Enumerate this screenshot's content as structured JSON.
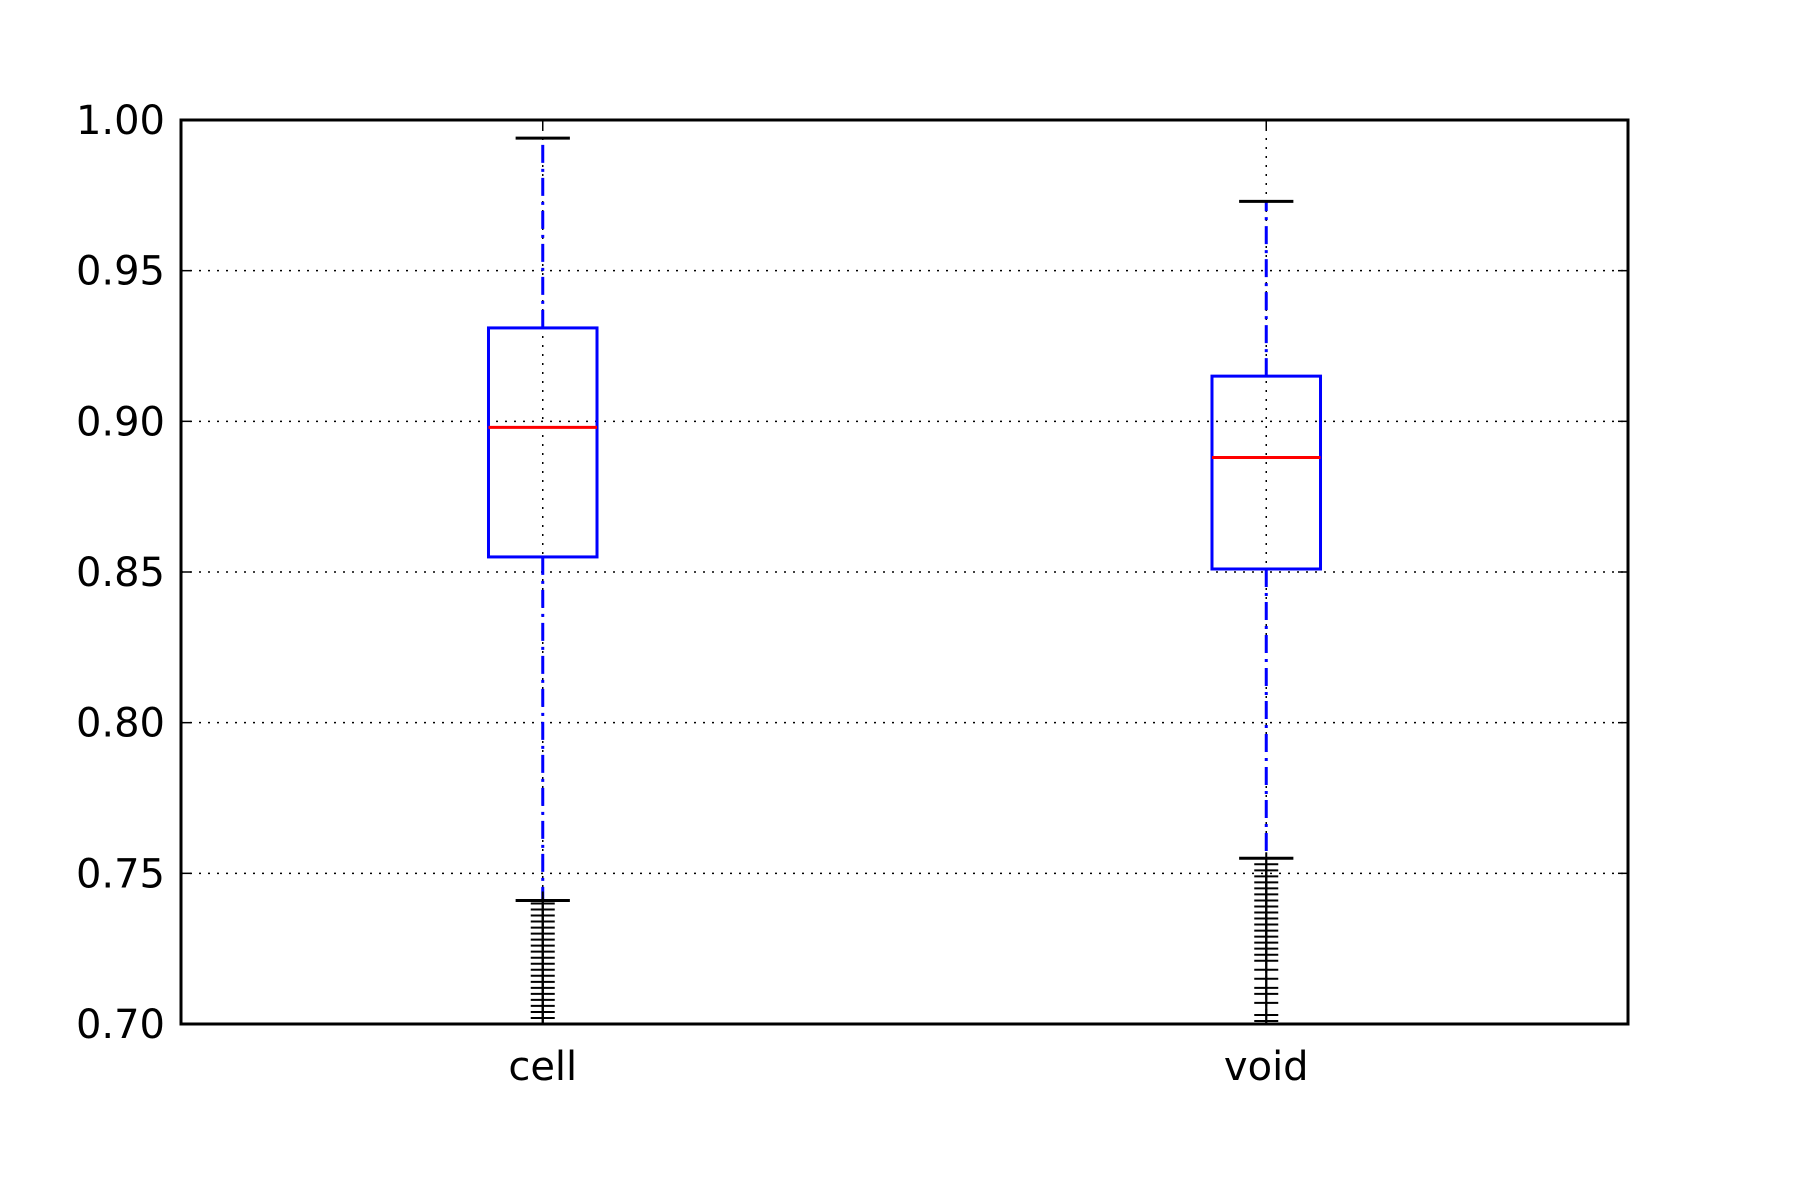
{
  "chart_data": {
    "type": "boxplot",
    "title": "",
    "xlabel": "",
    "ylabel": "",
    "categories": [
      "cell",
      "void"
    ],
    "ylim": [
      0.7,
      1.0
    ],
    "yticks": [
      0.7,
      0.75,
      0.8,
      0.85,
      0.9,
      0.95,
      1.0
    ],
    "ytick_labels": [
      "0.70",
      "0.75",
      "0.80",
      "0.85",
      "0.90",
      "0.95",
      "1.00"
    ],
    "grid": true,
    "boxes": [
      {
        "category": "cell",
        "whisker_low": 0.741,
        "q1": 0.855,
        "median": 0.898,
        "q3": 0.931,
        "whisker_high": 0.994,
        "outliers": [
          0.74,
          0.738,
          0.736,
          0.734,
          0.732,
          0.73,
          0.728,
          0.726,
          0.724,
          0.722,
          0.72,
          0.718,
          0.716,
          0.714,
          0.712,
          0.71,
          0.708,
          0.706,
          0.704,
          0.702,
          0.7
        ]
      },
      {
        "category": "void",
        "whisker_low": 0.755,
        "q1": 0.851,
        "median": 0.888,
        "q3": 0.915,
        "whisker_high": 0.973,
        "outliers": [
          0.753,
          0.751,
          0.749,
          0.747,
          0.745,
          0.743,
          0.741,
          0.739,
          0.737,
          0.735,
          0.733,
          0.731,
          0.729,
          0.727,
          0.725,
          0.723,
          0.721,
          0.718,
          0.715,
          0.712,
          0.71,
          0.707,
          0.703,
          0.701
        ]
      }
    ],
    "colors": {
      "box": "#0000ff",
      "whisker": "#0000ff",
      "cap": "#000000",
      "median": "#ff0000",
      "outlier": "#000000",
      "grid": "#000000",
      "axes": "#000000"
    }
  }
}
